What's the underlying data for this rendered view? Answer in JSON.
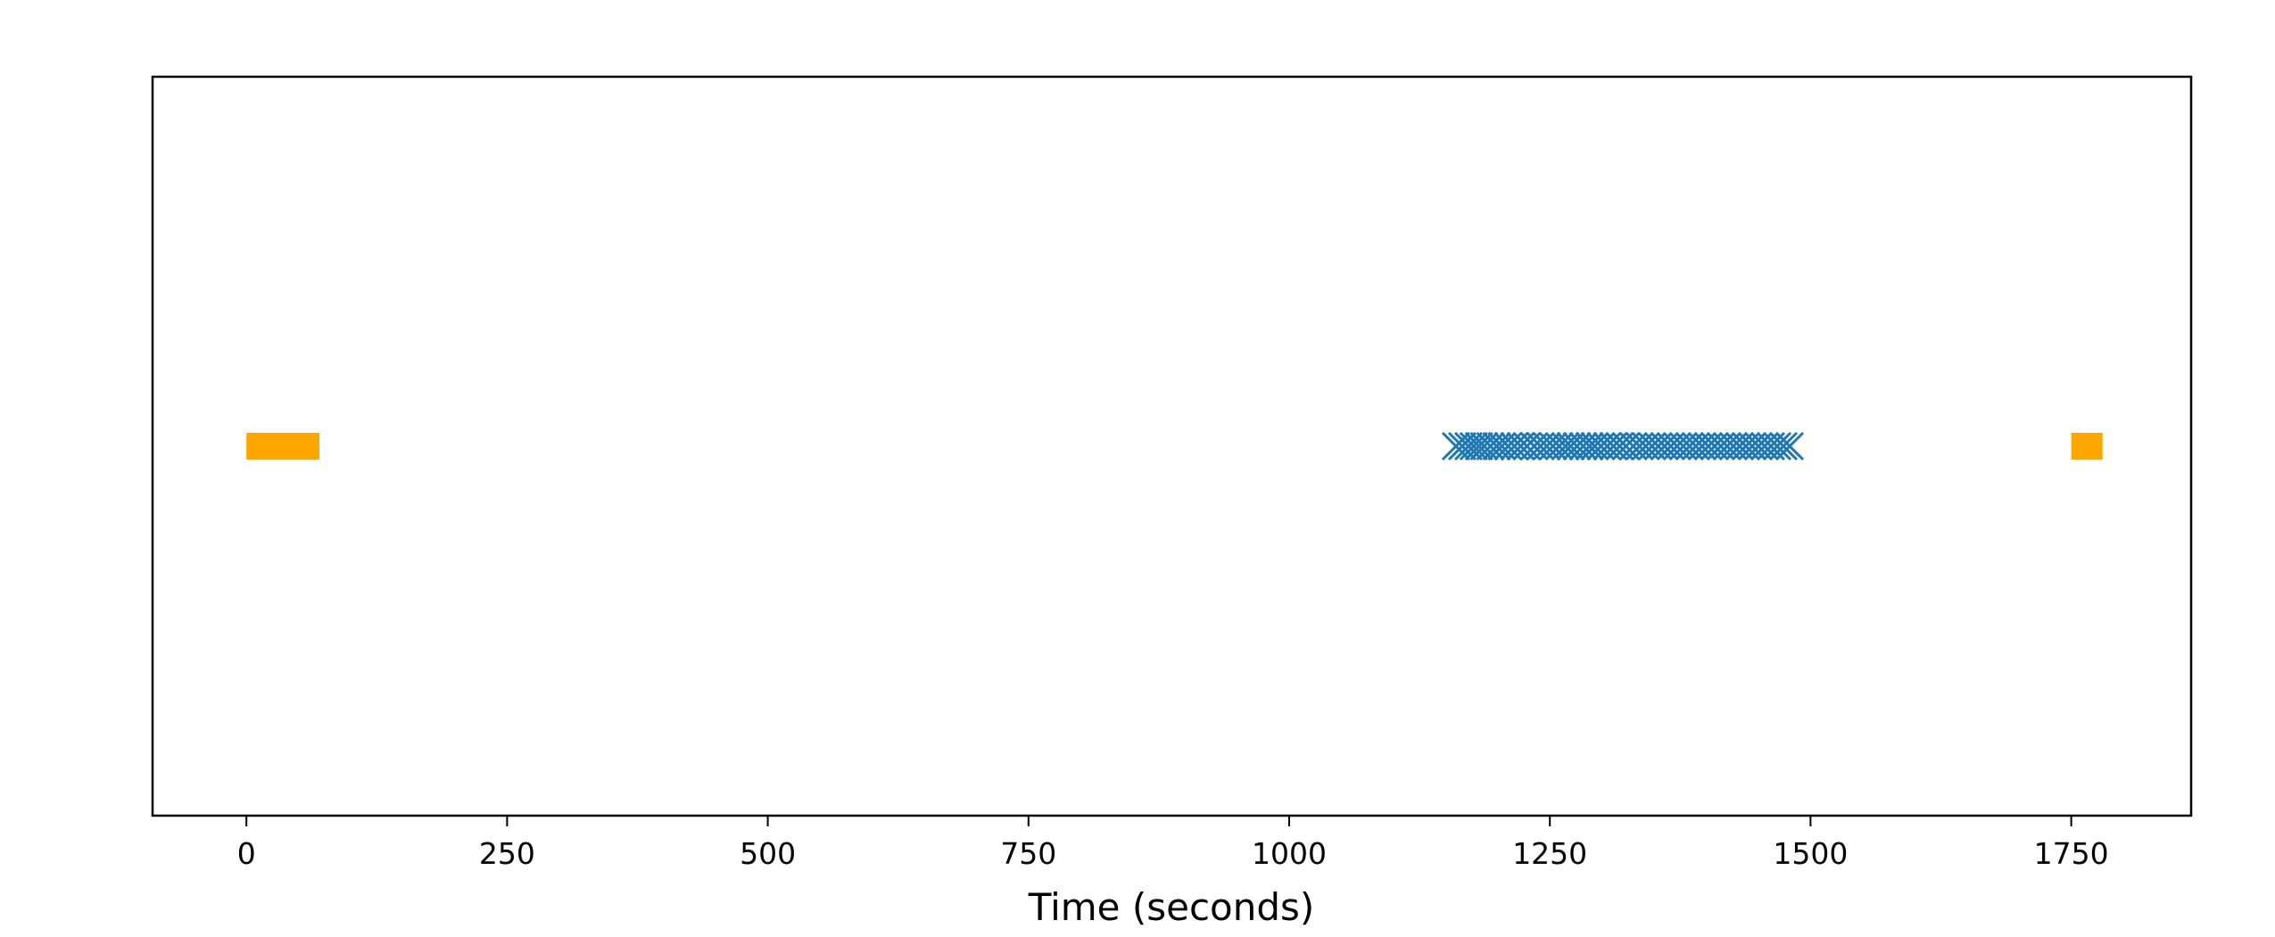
{
  "chart_data": {
    "type": "scatter",
    "title": "",
    "xlabel": "Time (seconds)",
    "ylabel": "",
    "xlim": [
      -90,
      1865
    ],
    "ylim": [
      -1,
      1
    ],
    "xticks": [
      0,
      250,
      500,
      750,
      1000,
      1250,
      1500,
      1750
    ],
    "xtick_labels": [
      "0",
      "250",
      "500",
      "750",
      "1000",
      "1250",
      "1500",
      "1750"
    ],
    "yticks_visible": false,
    "grid": false,
    "legend": "none",
    "intervals": {
      "color": "#ffa500",
      "spans": [
        [
          0,
          70
        ],
        [
          1750,
          1780
        ]
      ],
      "y": 0
    },
    "points": {
      "marker": "x",
      "color": "#1f77b4",
      "y": 0,
      "x": [
        1160,
        1166,
        1172,
        1177,
        1182,
        1187,
        1193,
        1199,
        1204,
        1210,
        1216,
        1222,
        1228,
        1235,
        1241,
        1247,
        1253,
        1259,
        1265,
        1270,
        1276,
        1282,
        1288,
        1293,
        1299,
        1305,
        1311,
        1317,
        1323,
        1330,
        1336,
        1342,
        1348,
        1354,
        1360,
        1366,
        1372,
        1378,
        1384,
        1390,
        1396,
        1402,
        1408,
        1414,
        1420,
        1426,
        1432,
        1438,
        1444,
        1450,
        1456,
        1462,
        1468,
        1474,
        1480
      ]
    }
  }
}
